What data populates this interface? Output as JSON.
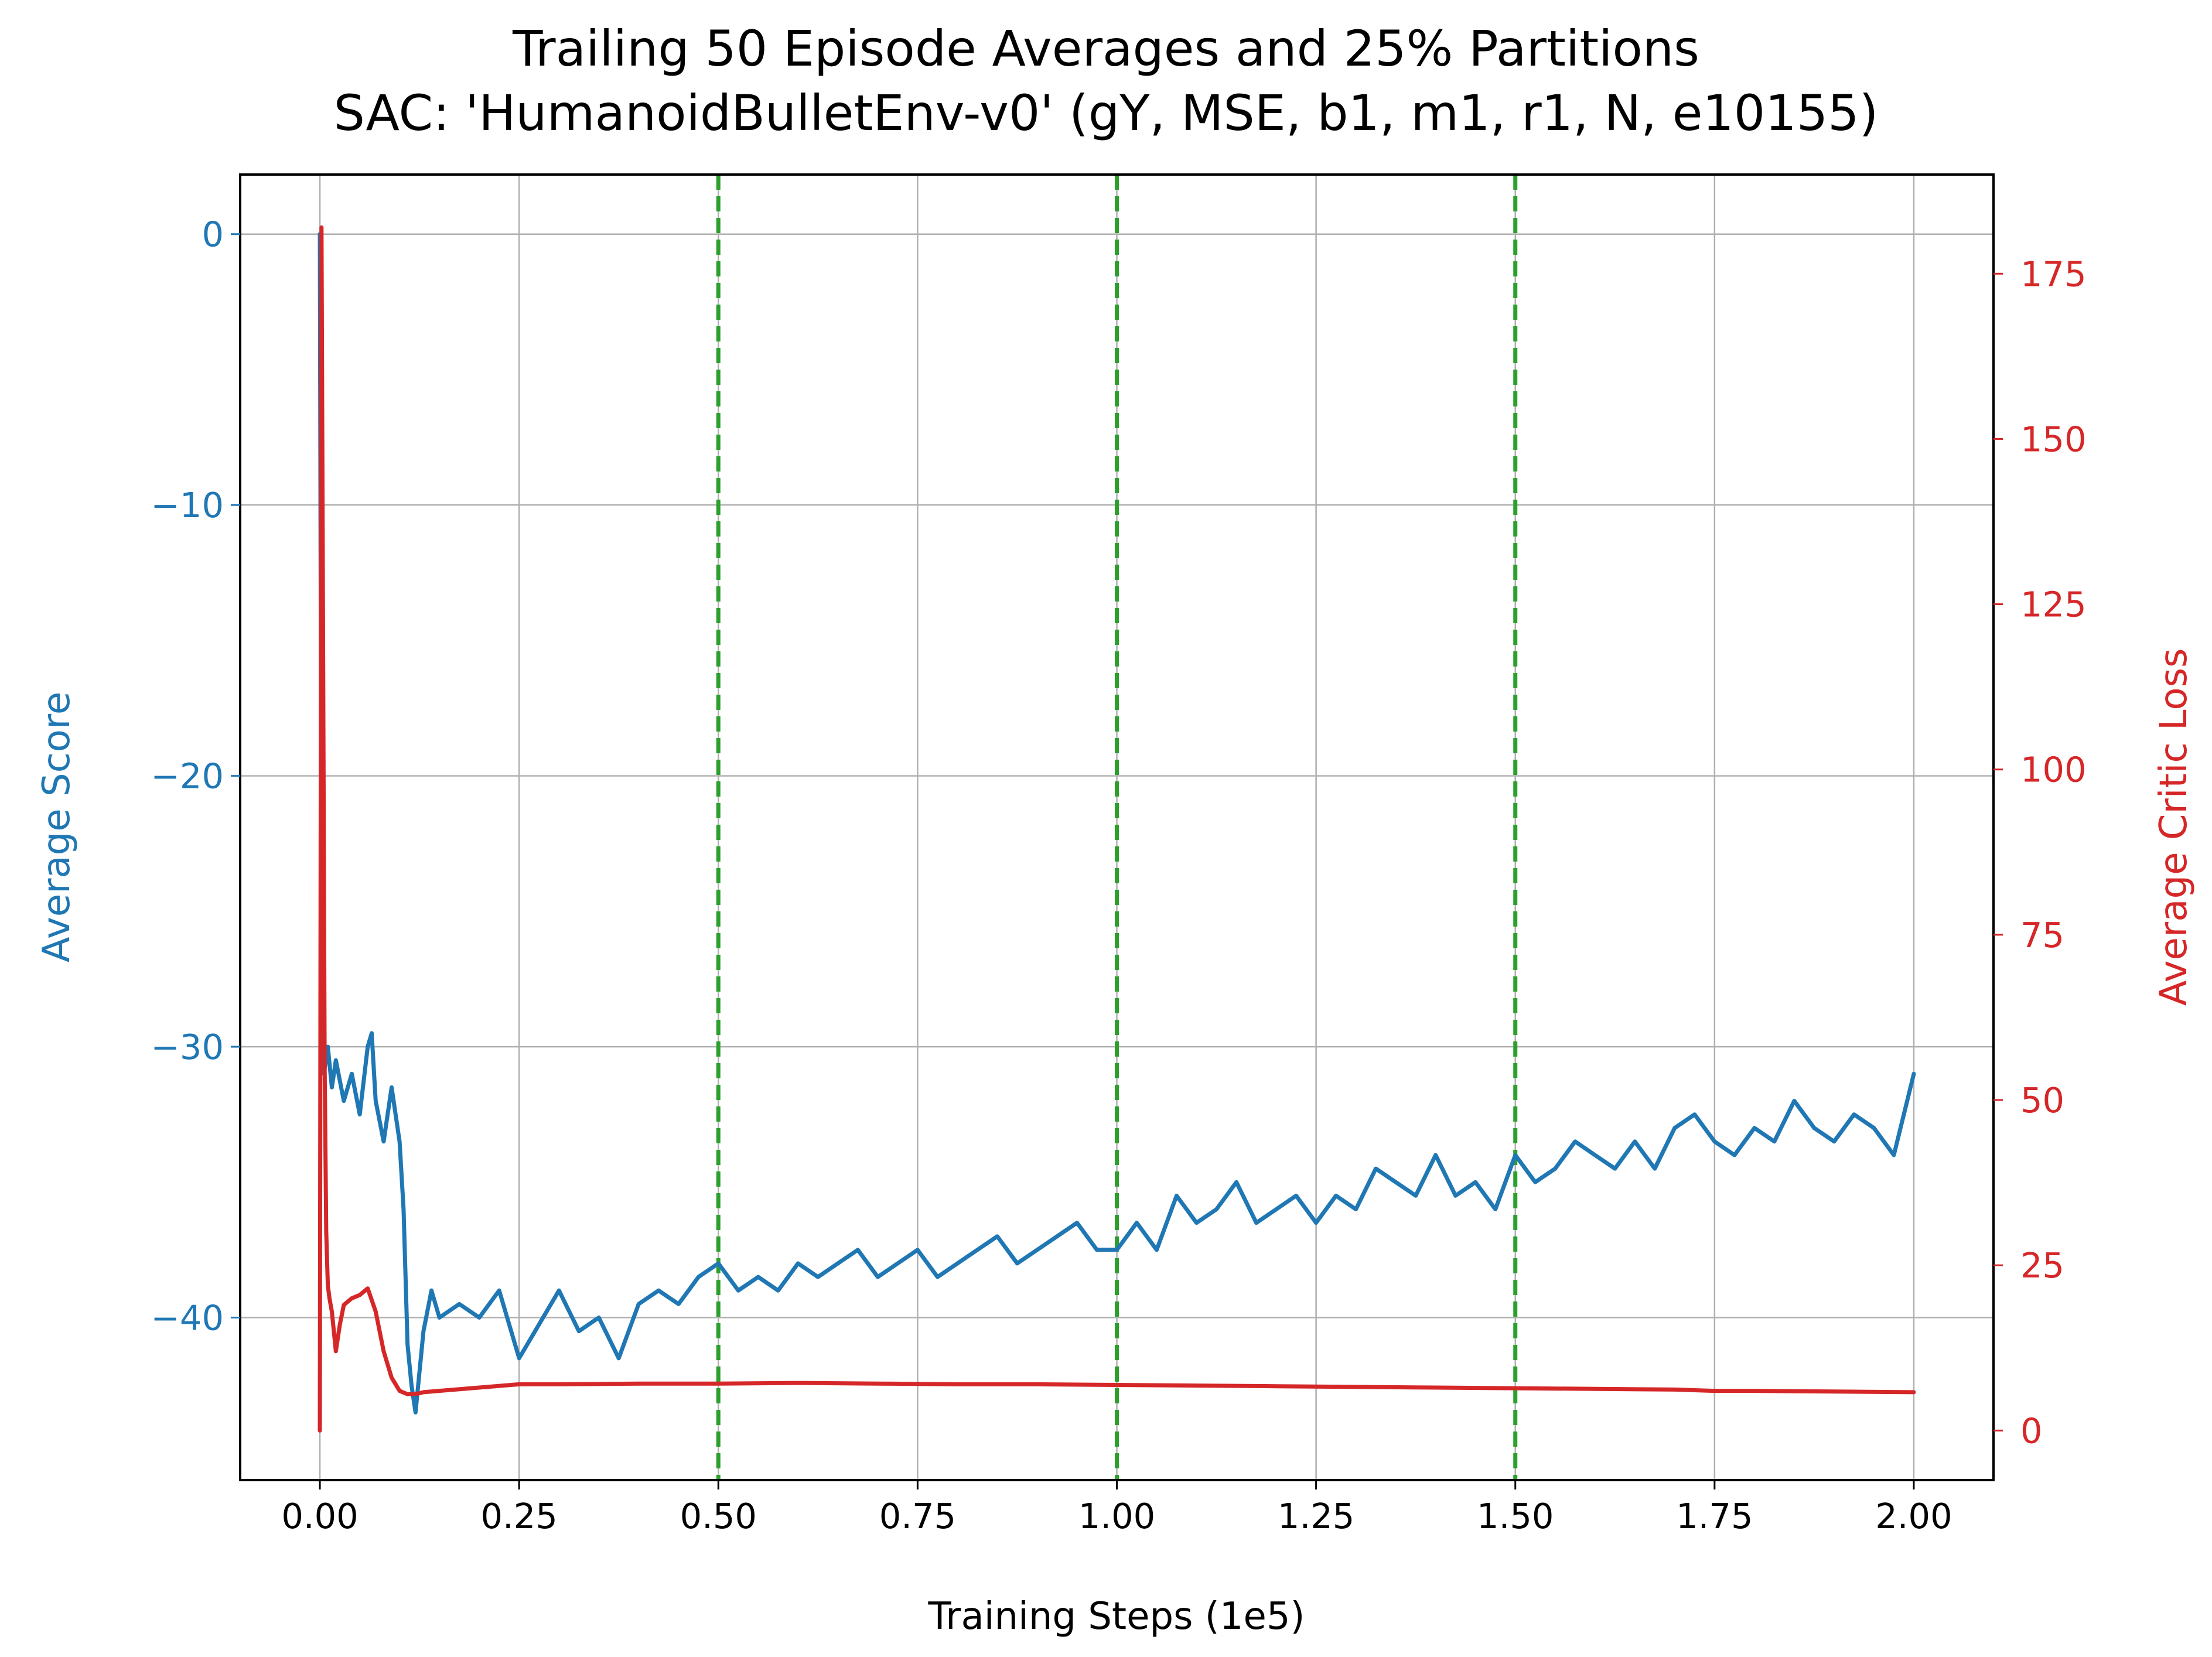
{
  "chart_data": {
    "type": "line",
    "title": "Trailing 50 Episode Averages and 25% Partitions",
    "subtitle": "SAC: 'HumanoidBulletEnv-v0' (gY, MSE, b1, m1, r1, N, e10155)",
    "xlabel": "Training Steps (1e5)",
    "ylabel": "Average Score",
    "y2label": "Average Critic Loss",
    "xlim": [
      -0.1,
      2.1
    ],
    "ylim": [
      -46.0,
      2.2
    ],
    "y2lim": [
      -7.5,
      190.0
    ],
    "x_ticks": [
      "0.00",
      "0.25",
      "0.50",
      "0.75",
      "1.00",
      "1.25",
      "1.50",
      "1.75",
      "2.00"
    ],
    "y_ticks": [
      "0",
      "−10",
      "−20",
      "−30",
      "−40"
    ],
    "y2_ticks": [
      "0",
      "25",
      "50",
      "75",
      "100",
      "125",
      "150",
      "175"
    ],
    "grid": true,
    "partition_lines": [
      0.5,
      1.0,
      1.5
    ],
    "colors": {
      "score": "#1f77b4",
      "critic_loss": "#d62728",
      "partition": "#2ca02c",
      "grid": "#b0b0b0"
    },
    "series": [
      {
        "name": "Average Score",
        "axis": "left",
        "x": [
          0.0,
          0.002,
          0.005,
          0.01,
          0.015,
          0.02,
          0.03,
          0.04,
          0.05,
          0.06,
          0.065,
          0.07,
          0.08,
          0.09,
          0.1,
          0.105,
          0.11,
          0.115,
          0.12,
          0.13,
          0.14,
          0.15,
          0.175,
          0.2,
          0.225,
          0.25,
          0.27,
          0.3,
          0.325,
          0.35,
          0.375,
          0.4,
          0.425,
          0.45,
          0.475,
          0.5,
          0.525,
          0.55,
          0.575,
          0.6,
          0.625,
          0.65,
          0.675,
          0.7,
          0.725,
          0.75,
          0.775,
          0.8,
          0.825,
          0.85,
          0.875,
          0.9,
          0.925,
          0.95,
          0.975,
          1.0,
          1.025,
          1.05,
          1.075,
          1.1,
          1.125,
          1.15,
          1.175,
          1.2,
          1.225,
          1.25,
          1.275,
          1.3,
          1.325,
          1.35,
          1.375,
          1.4,
          1.425,
          1.45,
          1.475,
          1.5,
          1.525,
          1.55,
          1.575,
          1.6,
          1.625,
          1.65,
          1.675,
          1.7,
          1.725,
          1.75,
          1.775,
          1.8,
          1.825,
          1.85,
          1.875,
          1.9,
          1.925,
          1.95,
          1.975,
          2.0
        ],
        "values": [
          0.0,
          -26.0,
          -31.0,
          -30.0,
          -31.5,
          -30.5,
          -32.0,
          -31.0,
          -32.5,
          -30.0,
          -29.5,
          -32.0,
          -33.5,
          -31.5,
          -33.5,
          -36.0,
          -41.0,
          -42.5,
          -43.5,
          -40.5,
          -39.0,
          -40.0,
          -39.5,
          -40.0,
          -39.0,
          -41.5,
          -40.5,
          -39.0,
          -40.5,
          -40.0,
          -41.5,
          -39.5,
          -39.0,
          -39.5,
          -38.5,
          -38.0,
          -39.0,
          -38.5,
          -39.0,
          -38.0,
          -38.5,
          -38.0,
          -37.5,
          -38.5,
          -38.0,
          -37.5,
          -38.5,
          -38.0,
          -37.5,
          -37.0,
          -38.0,
          -37.5,
          -37.0,
          -36.5,
          -37.5,
          -37.5,
          -36.5,
          -37.5,
          -35.5,
          -36.5,
          -36.0,
          -35.0,
          -36.5,
          -36.0,
          -35.5,
          -36.5,
          -35.5,
          -36.0,
          -34.5,
          -35.0,
          -35.5,
          -34.0,
          -35.5,
          -35.0,
          -36.0,
          -34.0,
          -35.0,
          -34.5,
          -33.5,
          -34.0,
          -34.5,
          -33.5,
          -34.5,
          -33.0,
          -32.5,
          -33.5,
          -34.0,
          -33.0,
          -33.5,
          -32.0,
          -33.0,
          -33.5,
          -32.5,
          -33.0,
          -34.0,
          -31.0
        ]
      },
      {
        "name": "Average Critic Loss",
        "axis": "right",
        "x": [
          0.0,
          0.002,
          0.004,
          0.006,
          0.008,
          0.01,
          0.012,
          0.015,
          0.02,
          0.025,
          0.03,
          0.04,
          0.05,
          0.06,
          0.07,
          0.08,
          0.09,
          0.1,
          0.11,
          0.12,
          0.13,
          0.15,
          0.2,
          0.25,
          0.3,
          0.4,
          0.5,
          0.6,
          0.7,
          0.8,
          0.9,
          1.0,
          1.1,
          1.2,
          1.3,
          1.4,
          1.5,
          1.6,
          1.7,
          1.75,
          1.8,
          1.9,
          2.0
        ],
        "values": [
          0.0,
          182.0,
          120.0,
          55.0,
          30.0,
          22.0,
          20.0,
          18.0,
          12.0,
          16.0,
          19.0,
          20.0,
          20.5,
          21.5,
          18.0,
          12.0,
          8.0,
          6.0,
          5.5,
          5.5,
          5.8,
          6.0,
          6.5,
          7.0,
          7.0,
          7.1,
          7.1,
          7.2,
          7.1,
          7.0,
          7.0,
          6.9,
          6.8,
          6.7,
          6.6,
          6.5,
          6.4,
          6.3,
          6.2,
          6.0,
          6.0,
          5.9,
          5.8
        ]
      }
    ]
  }
}
